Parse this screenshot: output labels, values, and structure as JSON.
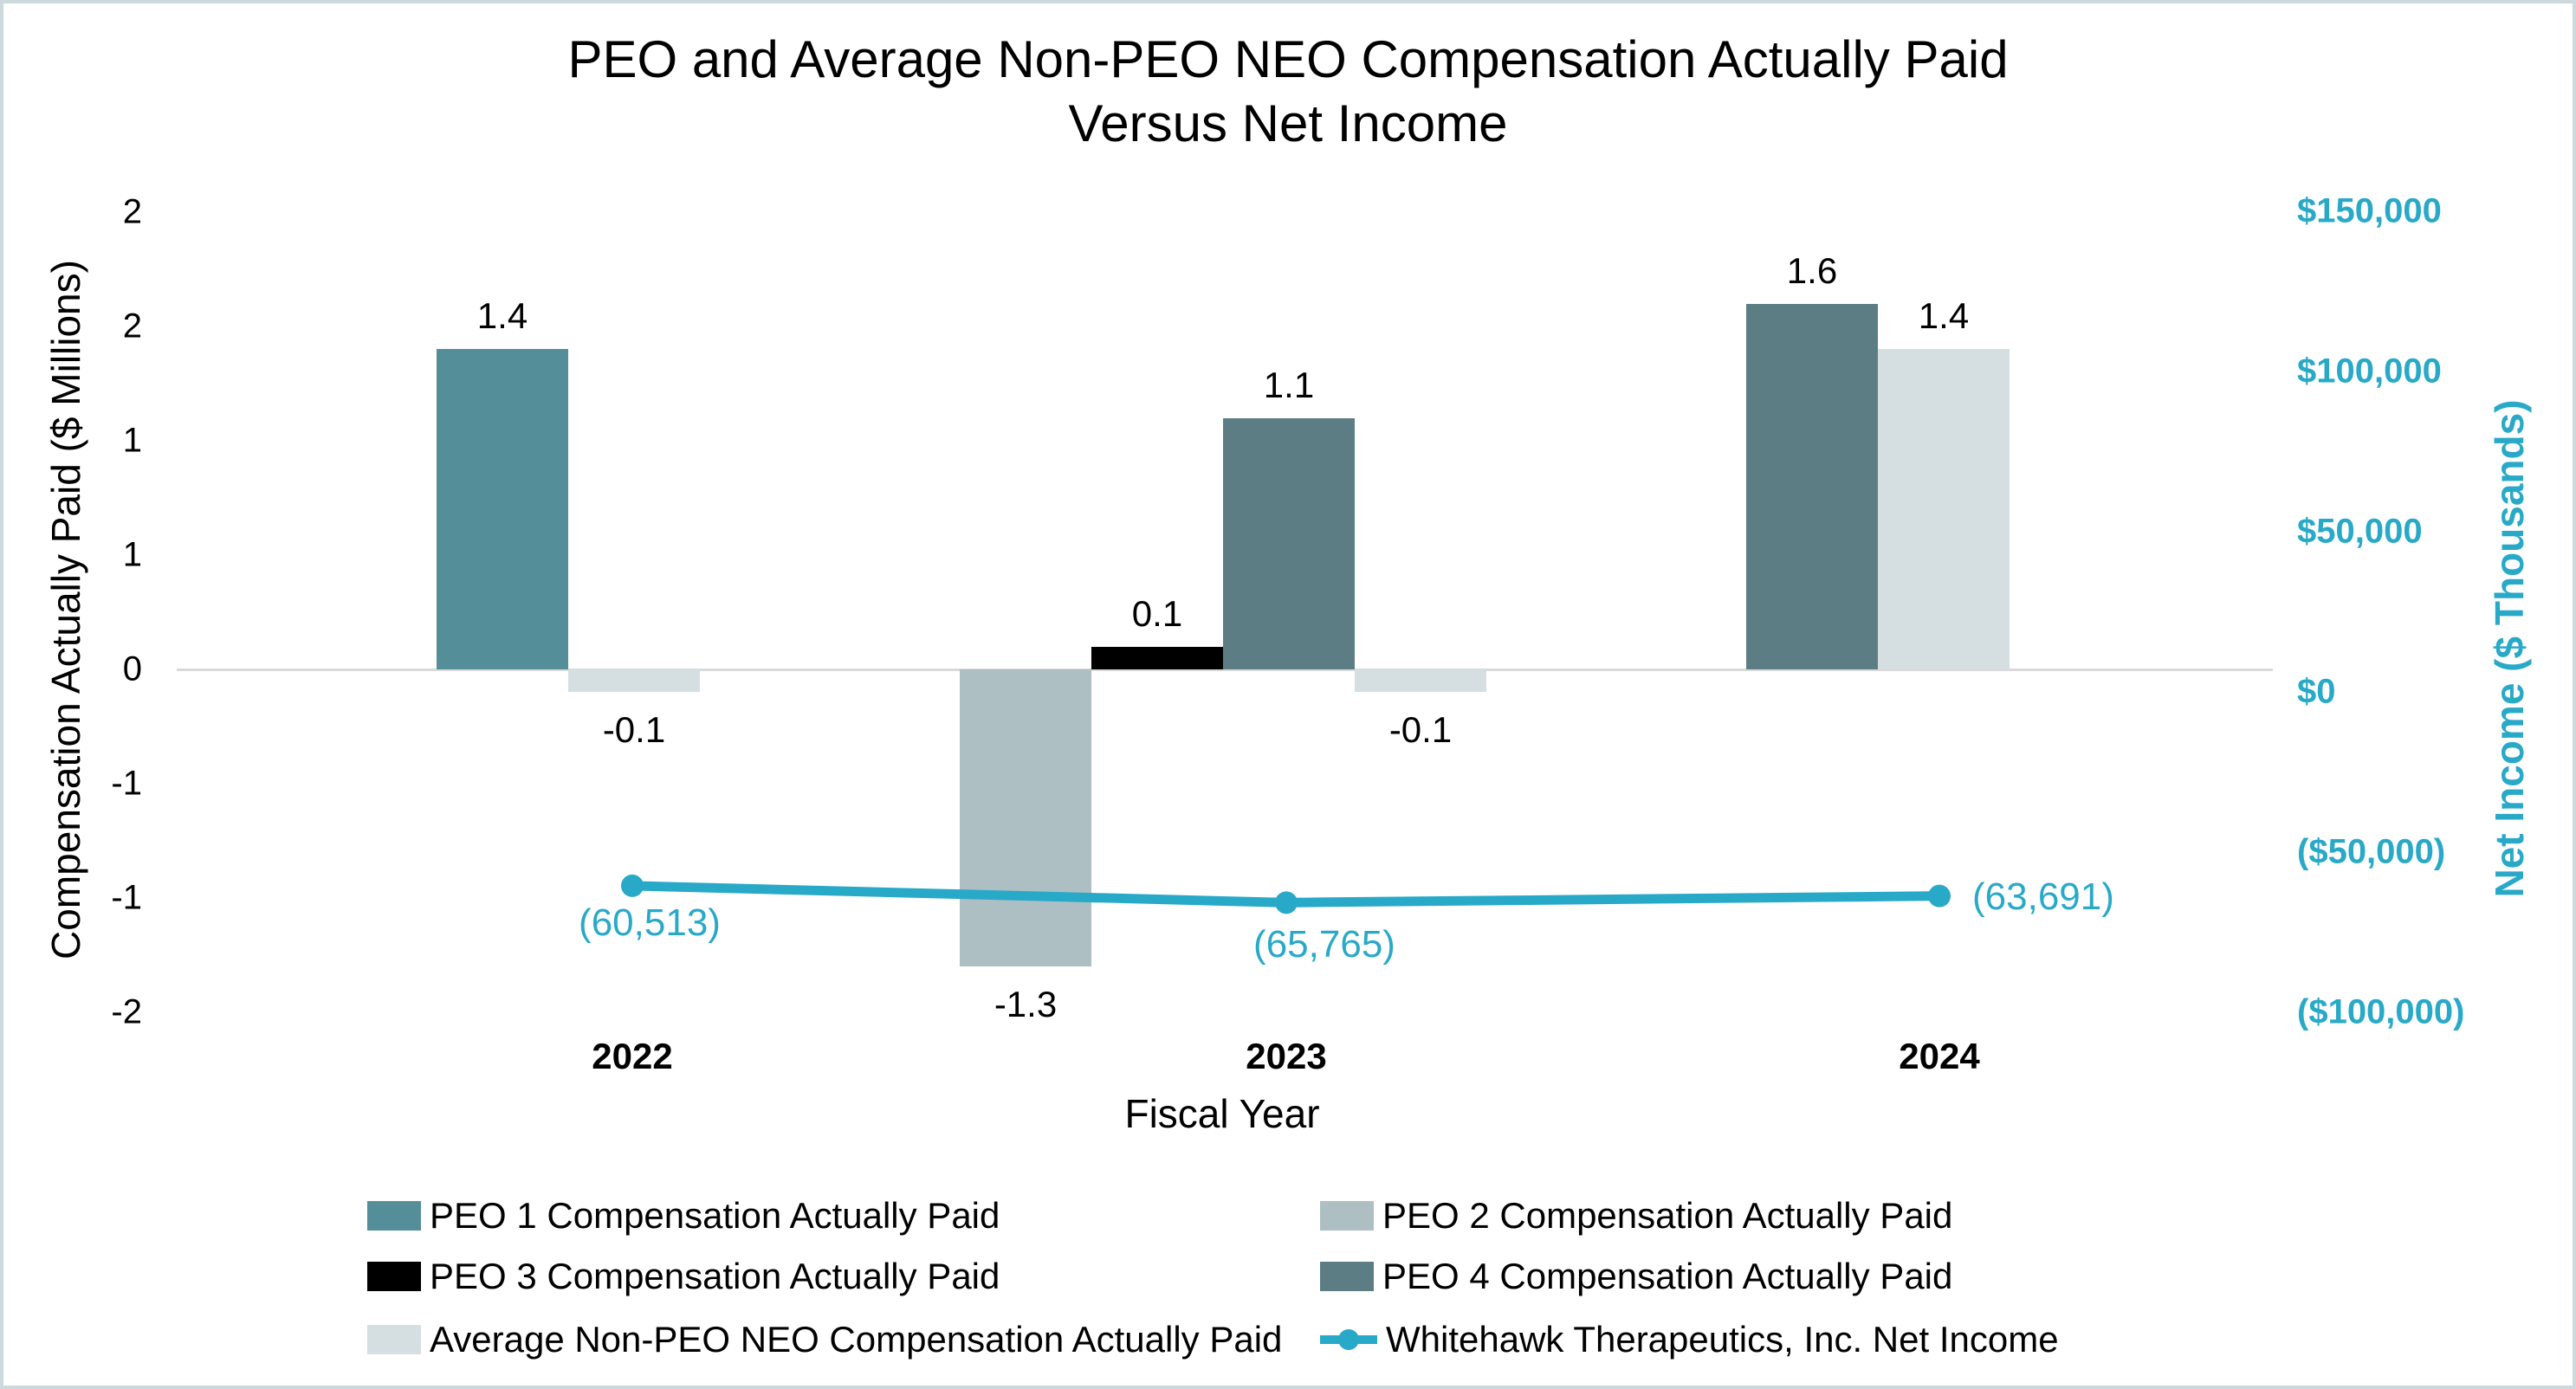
{
  "window": {
    "background": "#ffffff",
    "border_color": "#ccd9dd"
  },
  "title": {
    "line1": "PEO and Average Non-PEO NEO Compensation Actually Paid",
    "line2": "Versus Net Income"
  },
  "axes": {
    "left": {
      "title": "Compensation Actually Paid ($ Millions)",
      "tick_labels": [
        "2",
        "2",
        "1",
        "1",
        "0",
        "-1",
        "-1",
        "-2"
      ],
      "tick_values": [
        2,
        1.5,
        1,
        0.5,
        0,
        -0.5,
        -1,
        -1.5
      ],
      "range": [
        -1.5,
        2
      ]
    },
    "right": {
      "title": "Net Income ($ Thousands)",
      "tick_labels": [
        "$150,000",
        "$100,000",
        "$50,000",
        "$0",
        "($50,000)",
        "($100,000)"
      ],
      "tick_values": [
        150000,
        100000,
        50000,
        0,
        -50000,
        -100000
      ],
      "range": [
        -100000,
        150000
      ],
      "color": "#29a9c8"
    },
    "x": {
      "title": "Fiscal Year",
      "categories": [
        "2022",
        "2023",
        "2024"
      ]
    }
  },
  "chart_data": {
    "type": "bar+line",
    "categories": [
      "2022",
      "2023",
      "2024"
    ],
    "grid": "zero-line-only",
    "legend_position": "bottom",
    "gridline_color": "#d9d9d9",
    "series": [
      {
        "name": "PEO 1 Compensation Actually Paid",
        "slug": "peo1",
        "type": "bar",
        "axis": "left",
        "color": "#548e99",
        "values": [
          1.4,
          null,
          null
        ]
      },
      {
        "name": "PEO 2 Compensation Actually Paid",
        "slug": "peo2",
        "type": "bar",
        "axis": "left",
        "color": "#aebfc4",
        "values": [
          null,
          -1.3,
          null
        ]
      },
      {
        "name": "PEO 3 Compensation Actually Paid",
        "slug": "peo3",
        "type": "bar",
        "axis": "left",
        "color": "#000000",
        "values": [
          null,
          0.1,
          null
        ]
      },
      {
        "name": "PEO 4 Compensation Actually Paid",
        "slug": "peo4",
        "type": "bar",
        "axis": "left",
        "color": "#5c7d83",
        "values": [
          null,
          1.1,
          1.6
        ]
      },
      {
        "name": "Average Non-PEO NEO Compensation Actually Paid",
        "slug": "avg-non-peo-neo",
        "type": "bar",
        "axis": "left",
        "color": "#d5dfe1",
        "values": [
          -0.1,
          -0.1,
          1.4
        ]
      },
      {
        "name": "Whitehawk Therapeutics, Inc. Net Income",
        "slug": "net-income",
        "type": "line",
        "axis": "right",
        "color": "#29a9c8",
        "values": [
          -60513,
          -65765,
          -63691
        ],
        "point_labels": [
          "(60,513)",
          "(65,765)",
          "(63,691)"
        ]
      }
    ],
    "bar_value_labels": [
      "1.4",
      "-0.1",
      "-1.3",
      "0.1",
      "1.1",
      "-0.1",
      "1.6",
      "1.4"
    ]
  }
}
